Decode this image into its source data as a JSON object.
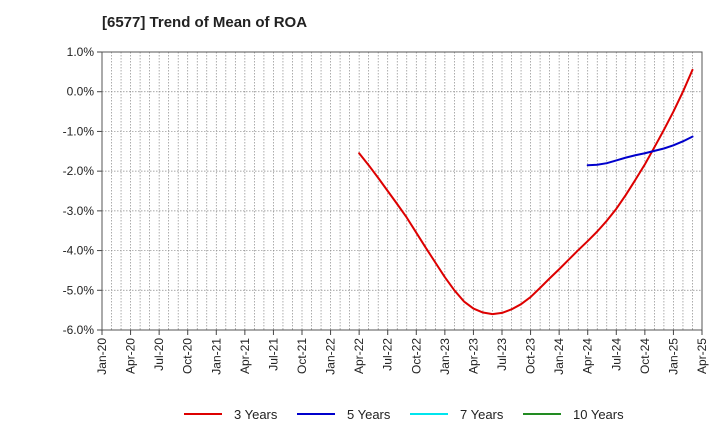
{
  "chart_data": {
    "type": "line",
    "title": "[6577]  Trend of Mean of ROA",
    "xlabel": "",
    "ylabel": "",
    "x_ticks": [
      "Jan-20",
      "Apr-20",
      "Jul-20",
      "Oct-20",
      "Jan-21",
      "Apr-21",
      "Jul-21",
      "Oct-21",
      "Jan-22",
      "Apr-22",
      "Jul-22",
      "Oct-22",
      "Jan-23",
      "Apr-23",
      "Jul-23",
      "Oct-23",
      "Jan-24",
      "Apr-24",
      "Jul-24",
      "Oct-24",
      "Jan-25",
      "Apr-25"
    ],
    "y_ticks": [
      "1.0%",
      "0.0%",
      "-1.0%",
      "-2.0%",
      "-3.0%",
      "-4.0%",
      "-5.0%",
      "-6.0%"
    ],
    "ylim": [
      -6.0,
      1.0
    ],
    "grid": true,
    "legend_position": "bottom",
    "series": [
      {
        "name": "3 Years",
        "color": "#dd0000",
        "points": [
          [
            "Apr-22",
            -1.55
          ],
          [
            "May-22",
            -1.85
          ],
          [
            "Jun-22",
            -2.17
          ],
          [
            "Jul-22",
            -2.5
          ],
          [
            "Aug-22",
            -2.83
          ],
          [
            "Sep-22",
            -3.17
          ],
          [
            "Oct-22",
            -3.55
          ],
          [
            "Nov-22",
            -3.93
          ],
          [
            "Dec-22",
            -4.3
          ],
          [
            "Jan-23",
            -4.67
          ],
          [
            "Feb-23",
            -5.0
          ],
          [
            "Mar-23",
            -5.28
          ],
          [
            "Apr-23",
            -5.46
          ],
          [
            "May-23",
            -5.56
          ],
          [
            "Jun-23",
            -5.6
          ],
          [
            "Jul-23",
            -5.57
          ],
          [
            "Aug-23",
            -5.48
          ],
          [
            "Sep-23",
            -5.35
          ],
          [
            "Oct-23",
            -5.17
          ],
          [
            "Nov-23",
            -4.94
          ],
          [
            "Dec-23",
            -4.7
          ],
          [
            "Jan-24",
            -4.47
          ],
          [
            "Feb-24",
            -4.23
          ],
          [
            "Mar-24",
            -3.99
          ],
          [
            "Apr-24",
            -3.76
          ],
          [
            "May-24",
            -3.52
          ],
          [
            "Jun-24",
            -3.25
          ],
          [
            "Jul-24",
            -2.95
          ],
          [
            "Aug-24",
            -2.6
          ],
          [
            "Sep-24",
            -2.22
          ],
          [
            "Oct-24",
            -1.83
          ],
          [
            "Nov-24",
            -1.4
          ],
          [
            "Dec-24",
            -0.96
          ],
          [
            "Jan-25",
            -0.5
          ],
          [
            "Feb-25",
            0.0
          ],
          [
            "Mar-25",
            0.55
          ]
        ]
      },
      {
        "name": "5 Years",
        "color": "#0000cc",
        "points": [
          [
            "Apr-24",
            -1.85
          ],
          [
            "May-24",
            -1.84
          ],
          [
            "Jun-24",
            -1.8
          ],
          [
            "Jul-24",
            -1.73
          ],
          [
            "Aug-24",
            -1.66
          ],
          [
            "Sep-24",
            -1.6
          ],
          [
            "Oct-24",
            -1.55
          ],
          [
            "Nov-24",
            -1.49
          ],
          [
            "Dec-24",
            -1.43
          ],
          [
            "Jan-25",
            -1.35
          ],
          [
            "Feb-25",
            -1.25
          ],
          [
            "Mar-25",
            -1.13
          ]
        ]
      },
      {
        "name": "7 Years",
        "color": "#00e5ee",
        "points": []
      },
      {
        "name": "10 Years",
        "color": "#228b22",
        "points": []
      }
    ]
  }
}
